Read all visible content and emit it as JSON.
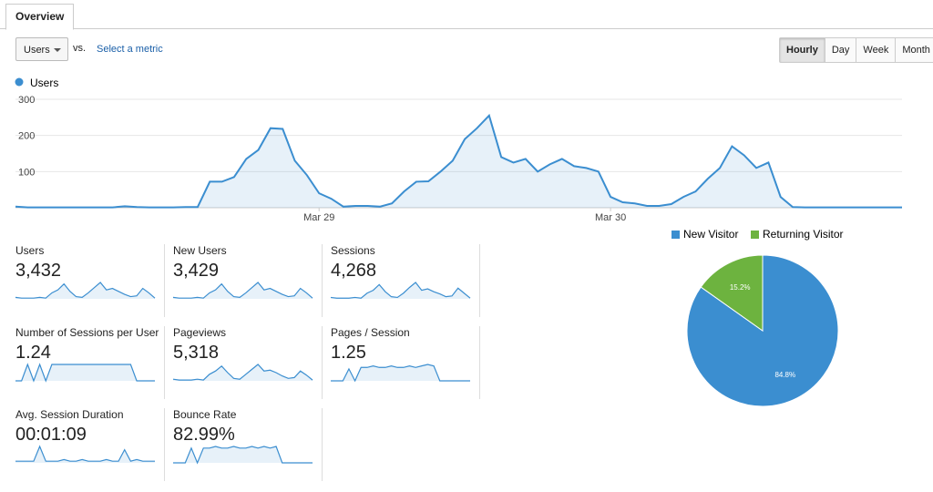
{
  "tab": "Overview",
  "controls": {
    "metric": "Users",
    "vs": "vs.",
    "compare": "Select a metric",
    "buttons": [
      "Hourly",
      "Day",
      "Week",
      "Month"
    ]
  },
  "chart_data": [
    {
      "type": "line",
      "categories": [
        null,
        null,
        null,
        null,
        null,
        null,
        null,
        null,
        null,
        null,
        null,
        null,
        null,
        null,
        null,
        null,
        null,
        null,
        null,
        null,
        null,
        null,
        null,
        null,
        null,
        "Mar 29",
        null,
        null,
        null,
        null,
        null,
        null,
        null,
        null,
        null,
        null,
        null,
        null,
        null,
        null,
        null,
        null,
        null,
        null,
        null,
        null,
        null,
        null,
        null,
        "Mar 30",
        null,
        null,
        null,
        null,
        null,
        null,
        null,
        null,
        null,
        null,
        null,
        null,
        null,
        null,
        null,
        null,
        null,
        null,
        null,
        null,
        null,
        null,
        null,
        null
      ],
      "series": [
        {
          "name": "Users",
          "color": "#3b8ed0",
          "values": [
            3,
            1,
            1,
            1,
            1,
            1,
            1,
            1,
            1,
            4,
            2,
            1,
            1,
            1,
            2,
            2,
            72,
            72,
            85,
            135,
            160,
            220,
            218,
            130,
            90,
            40,
            25,
            3,
            5,
            5,
            3,
            12,
            45,
            72,
            73,
            100,
            130,
            190,
            220,
            255,
            140,
            125,
            135,
            100,
            120,
            135,
            115,
            110,
            100,
            30,
            15,
            12,
            5,
            5,
            10,
            30,
            45,
            80,
            110,
            170,
            145,
            110,
            125,
            30,
            2,
            1,
            1,
            1,
            1,
            1,
            1,
            1,
            1,
            1
          ]
        }
      ],
      "ylim": [
        0,
        310
      ],
      "yticks": [
        100,
        200,
        300
      ],
      "grid": true
    },
    {
      "type": "pie",
      "categories": [
        "New Visitor",
        "Returning Visitor"
      ],
      "values": [
        84.8,
        15.2
      ],
      "value_labels": [
        "84.8%",
        "15.2%"
      ],
      "colors": [
        "#3b8ed0",
        "#6db33f"
      ]
    }
  ],
  "metrics": [
    {
      "label": "Users",
      "value": "3,432",
      "sparkline": [
        2,
        1,
        1,
        1,
        2,
        1,
        8,
        12,
        20,
        10,
        3,
        2,
        8,
        15,
        22,
        12,
        14,
        10,
        6,
        3,
        4,
        14,
        8,
        1
      ]
    },
    {
      "label": "New Users",
      "value": "3,429",
      "sparkline": [
        2,
        1,
        1,
        1,
        2,
        1,
        8,
        12,
        20,
        10,
        3,
        2,
        8,
        15,
        22,
        12,
        14,
        10,
        6,
        3,
        4,
        14,
        8,
        1
      ]
    },
    {
      "label": "Sessions",
      "value": "4,268",
      "sparkline": [
        2,
        1,
        1,
        1,
        2,
        1,
        8,
        12,
        20,
        10,
        3,
        2,
        8,
        16,
        23,
        12,
        14,
        10,
        7,
        3,
        4,
        15,
        8,
        1
      ]
    },
    {
      "label": "Number of Sessions per User",
      "value": "1.24",
      "sparkline": [
        0,
        0,
        9,
        0,
        9,
        0,
        9,
        9,
        9,
        9,
        9,
        9,
        9,
        9,
        9,
        9,
        9,
        9,
        9,
        9,
        0,
        0,
        0,
        0
      ]
    },
    {
      "label": "Pageviews",
      "value": "5,318",
      "sparkline": [
        2,
        1,
        1,
        1,
        2,
        1,
        8,
        12,
        18,
        10,
        3,
        2,
        8,
        14,
        20,
        12,
        13,
        10,
        6,
        3,
        4,
        12,
        7,
        1
      ]
    },
    {
      "label": "Pages / Session",
      "value": "1.25",
      "sparkline": [
        0,
        0,
        0,
        8,
        0,
        9,
        9,
        10,
        9,
        9,
        10,
        9,
        9,
        10,
        9,
        10,
        11,
        10,
        0,
        0,
        0,
        0,
        0,
        0
      ]
    },
    {
      "label": "Avg. Session Duration",
      "value": "00:01:09",
      "sparkline": [
        1,
        1,
        1,
        1,
        10,
        1,
        1,
        1,
        2,
        1,
        1,
        2,
        1,
        1,
        1,
        2,
        1,
        1,
        8,
        1,
        2,
        1,
        1,
        1
      ]
    },
    {
      "label": "Bounce Rate",
      "value": "82.99%",
      "sparkline": [
        0,
        0,
        0,
        9,
        0,
        9,
        9,
        10,
        9,
        9,
        10,
        9,
        9,
        10,
        9,
        10,
        9,
        10,
        0,
        0,
        0,
        0,
        0,
        0
      ]
    }
  ]
}
